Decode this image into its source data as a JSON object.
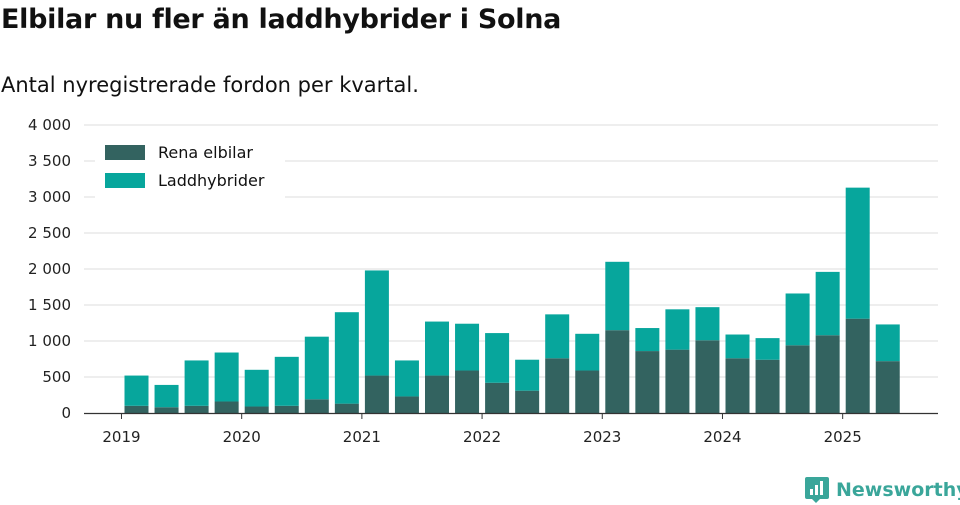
{
  "header": {
    "title": "Elbilar nu fler än laddhybrider i Solna",
    "subtitle": "Antal nyregistrerade fordon per kvartal."
  },
  "brand": {
    "name": "Newsworthy"
  },
  "chart_data": {
    "type": "bar",
    "stacked": true,
    "title": "Elbilar nu fler än laddhybrider i Solna",
    "subtitle": "Antal nyregistrerade fordon per kvartal.",
    "categories": [
      "2019 Q1",
      "2019 Q2",
      "2019 Q3",
      "2019 Q4",
      "2020 Q1",
      "2020 Q2",
      "2020 Q3",
      "2020 Q4",
      "2021 Q1",
      "2021 Q2",
      "2021 Q3",
      "2021 Q4",
      "2022 Q1",
      "2022 Q2",
      "2022 Q3",
      "2022 Q4",
      "2023 Q1",
      "2023 Q2",
      "2023 Q3",
      "2023 Q4",
      "2024 Q1",
      "2024 Q2",
      "2024 Q3",
      "2024 Q4",
      "2025 Q1",
      "2025 Q2",
      "2025 Q3"
    ],
    "series": [
      {
        "name": "Rena elbilar",
        "color": "#336360",
        "values": [
          100,
          80,
          100,
          160,
          90,
          100,
          190,
          130,
          520,
          230,
          520,
          590,
          420,
          310,
          760,
          590,
          1150,
          860,
          880,
          1010,
          760,
          740,
          940,
          1080,
          1310,
          720,
          0
        ]
      },
      {
        "name": "Laddhybrider",
        "color": "#07a69c",
        "values": [
          420,
          310,
          630,
          680,
          510,
          680,
          870,
          1270,
          1460,
          500,
          750,
          650,
          690,
          430,
          610,
          510,
          950,
          320,
          560,
          460,
          330,
          300,
          720,
          880,
          1820,
          510,
          0
        ]
      }
    ],
    "xticks": [
      {
        "label": "2019",
        "index": -0.5
      },
      {
        "label": "2020",
        "index": 3.5
      },
      {
        "label": "2021",
        "index": 7.5
      },
      {
        "label": "2022",
        "index": 11.5
      },
      {
        "label": "2023",
        "index": 15.5
      },
      {
        "label": "2024",
        "index": 19.5
      },
      {
        "label": "2025",
        "index": 23.5
      }
    ],
    "yticks": [
      0,
      500,
      1000,
      1500,
      2000,
      2500,
      3000,
      3500,
      4000
    ],
    "ytick_labels": [
      "0",
      "500",
      "1 000",
      "1 500",
      "2 000",
      "2 500",
      "3 000",
      "3 500",
      "4 000"
    ],
    "ylim": [
      0,
      4000
    ],
    "grid": true,
    "legend": "top-left",
    "xlabel": "",
    "ylabel": ""
  }
}
